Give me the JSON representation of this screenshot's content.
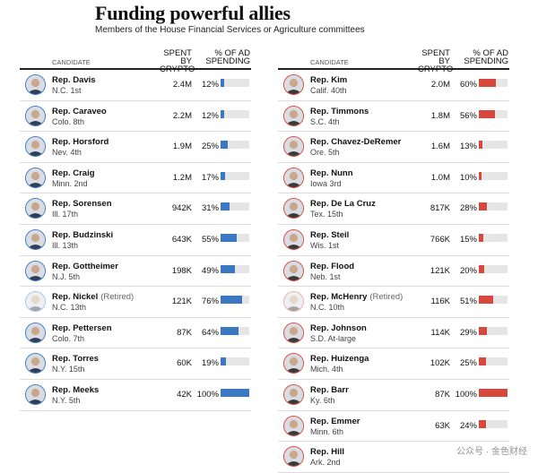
{
  "header": {
    "title": "Funding powerful allies",
    "subtitle": "Members of the House Financial Services or Agriculture committees"
  },
  "columns": {
    "candidate": "CANDIDATE",
    "spent": "SPENT BY CRYPTO",
    "pct": "% OF AD SPENDING"
  },
  "colors": {
    "dem": "#3b78c2",
    "rep": "#d6473c",
    "track": "#e6e6e6"
  },
  "chart_data": {
    "type": "table",
    "left": [
      {
        "name": "Rep. Davis",
        "status": "",
        "district": "N.C. 1st",
        "spent": "2.4M",
        "pct_label": "12%",
        "pct": 12,
        "party": "dem"
      },
      {
        "name": "Rep. Caraveo",
        "status": "",
        "district": "Colo. 8th",
        "spent": "2.2M",
        "pct_label": "12%",
        "pct": 12,
        "party": "dem"
      },
      {
        "name": "Rep. Horsford",
        "status": "",
        "district": "Nev. 4th",
        "spent": "1.9M",
        "pct_label": "25%",
        "pct": 25,
        "party": "dem"
      },
      {
        "name": "Rep. Craig",
        "status": "",
        "district": "Minn. 2nd",
        "spent": "1.2M",
        "pct_label": "17%",
        "pct": 17,
        "party": "dem"
      },
      {
        "name": "Rep. Sorensen",
        "status": "",
        "district": "Ill. 17th",
        "spent": "942K",
        "pct_label": "31%",
        "pct": 31,
        "party": "dem"
      },
      {
        "name": "Rep. Budzinski",
        "status": "",
        "district": "Ill. 13th",
        "spent": "643K",
        "pct_label": "55%",
        "pct": 55,
        "party": "dem"
      },
      {
        "name": "Rep. Gottheimer",
        "status": "",
        "district": "N.J. 5th",
        "spent": "198K",
        "pct_label": "49%",
        "pct": 49,
        "party": "dem"
      },
      {
        "name": "Rep. Nickel",
        "status": "(Retired)",
        "district": "N.C. 13th",
        "spent": "121K",
        "pct_label": "76%",
        "pct": 76,
        "party": "dem",
        "retired": true
      },
      {
        "name": "Rep. Pettersen",
        "status": "",
        "district": "Colo. 7th",
        "spent": "87K",
        "pct_label": "64%",
        "pct": 64,
        "party": "dem"
      },
      {
        "name": "Rep. Torres",
        "status": "",
        "district": "N.Y. 15th",
        "spent": "60K",
        "pct_label": "19%",
        "pct": 19,
        "party": "dem"
      },
      {
        "name": "Rep. Meeks",
        "status": "",
        "district": "N.Y. 5th",
        "spent": "42K",
        "pct_label": "100%",
        "pct": 100,
        "party": "dem"
      }
    ],
    "right": [
      {
        "name": "Rep. Kim",
        "status": "",
        "district": "Calif. 40th",
        "spent": "2.0M",
        "pct_label": "60%",
        "pct": 60,
        "party": "rep"
      },
      {
        "name": "Rep. Timmons",
        "status": "",
        "district": "S.C. 4th",
        "spent": "1.8M",
        "pct_label": "56%",
        "pct": 56,
        "party": "rep"
      },
      {
        "name": "Rep. Chavez-DeRemer",
        "status": "",
        "district": "Ore. 5th",
        "spent": "1.6M",
        "pct_label": "13%",
        "pct": 13,
        "party": "rep"
      },
      {
        "name": "Rep. Nunn",
        "status": "",
        "district": "Iowa 3rd",
        "spent": "1.0M",
        "pct_label": "10%",
        "pct": 10,
        "party": "rep"
      },
      {
        "name": "Rep. De La Cruz",
        "status": "",
        "district": "Tex. 15th",
        "spent": "817K",
        "pct_label": "28%",
        "pct": 28,
        "party": "rep"
      },
      {
        "name": "Rep. Steil",
        "status": "",
        "district": "Wis. 1st",
        "spent": "766K",
        "pct_label": "15%",
        "pct": 15,
        "party": "rep"
      },
      {
        "name": "Rep. Flood",
        "status": "",
        "district": "Neb. 1st",
        "spent": "121K",
        "pct_label": "20%",
        "pct": 20,
        "party": "rep"
      },
      {
        "name": "Rep. McHenry",
        "status": "(Retired)",
        "district": "N.C. 10th",
        "spent": "116K",
        "pct_label": "51%",
        "pct": 51,
        "party": "rep",
        "retired": true
      },
      {
        "name": "Rep. Johnson",
        "status": "",
        "district": "S.D. At-large",
        "spent": "114K",
        "pct_label": "29%",
        "pct": 29,
        "party": "rep"
      },
      {
        "name": "Rep. Huizenga",
        "status": "",
        "district": "Mich. 4th",
        "spent": "102K",
        "pct_label": "25%",
        "pct": 25,
        "party": "rep"
      },
      {
        "name": "Rep. Barr",
        "status": "",
        "district": "Ky. 6th",
        "spent": "87K",
        "pct_label": "100%",
        "pct": 100,
        "party": "rep"
      },
      {
        "name": "Rep. Emmer",
        "status": "",
        "district": "Minn. 6th",
        "spent": "63K",
        "pct_label": "24%",
        "pct": 24,
        "party": "rep"
      },
      {
        "name": "Rep. Hill",
        "status": "",
        "district": "Ark. 2nd",
        "spent": "",
        "pct_label": "",
        "pct": null,
        "party": "rep"
      }
    ]
  },
  "watermark": "公众号 · 金色财经"
}
